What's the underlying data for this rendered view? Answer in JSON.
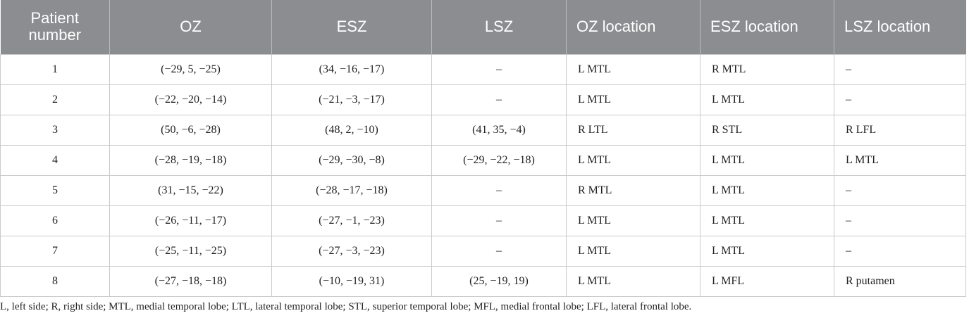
{
  "table": {
    "header": [
      "Patient number",
      "OZ",
      "ESZ",
      "LSZ",
      "OZ location",
      "ESZ location",
      "LSZ location"
    ],
    "rows": [
      [
        "1",
        "(−29, 5, −25)",
        "(34, −16, −17)",
        "–",
        "L MTL",
        "R MTL",
        "–"
      ],
      [
        "2",
        "(−22, −20, −14)",
        "(−21, −3, −17)",
        "–",
        "L MTL",
        "L MTL",
        "–"
      ],
      [
        "3",
        "(50, −6, −28)",
        "(48, 2, −10)",
        "(41, 35, −4)",
        "R LTL",
        "R STL",
        "R LFL"
      ],
      [
        "4",
        "(−28, −19, −18)",
        "(−29, −30, −8)",
        "(−29, −22, −18)",
        "L MTL",
        "L MTL",
        "L MTL"
      ],
      [
        "5",
        "(31, −15, −22)",
        "(−28, −17, −18)",
        "–",
        "R MTL",
        "L MTL",
        "–"
      ],
      [
        "6",
        "(−26, −11, −17)",
        "(−27, −1, −23)",
        "–",
        "L MTL",
        "L MTL",
        "–"
      ],
      [
        "7",
        "(−25, −11, −25)",
        "(−27, −3, −23)",
        "–",
        "L MTL",
        "L MTL",
        "–"
      ],
      [
        "8",
        "(−27, −18, −18)",
        "(−10, −19, 31)",
        "(25, −19, 19)",
        "L MTL",
        "L MFL",
        "R putamen"
      ]
    ]
  },
  "footnote": "L, left side; R, right side; MTL, medial temporal lobe; LTL, lateral temporal lobe; STL, superior temporal lobe; MFL, medial frontal lobe; LFL, lateral frontal lobe."
}
